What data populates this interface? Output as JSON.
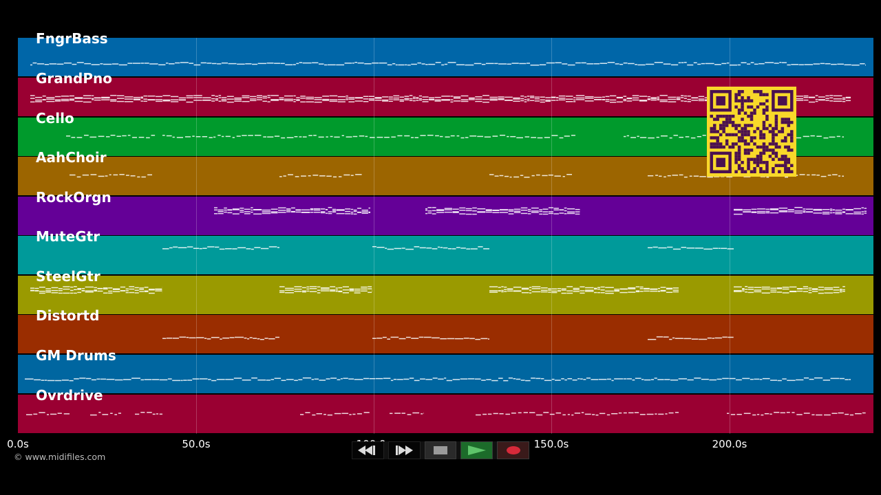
{
  "tracks": [
    {
      "name": "FngrBass",
      "color": "#0066a8"
    },
    {
      "name": "GrandPno",
      "color": "#9a0032"
    },
    {
      "name": "Cello",
      "color": "#009a2c"
    },
    {
      "name": "AahChoir",
      "color": "#9c6500"
    },
    {
      "name": "RockOrgn",
      "color": "#640097"
    },
    {
      "name": "MuteGtr",
      "color": "#009a9a"
    },
    {
      "name": "SteelGtr",
      "color": "#9a9a00"
    },
    {
      "name": "Distortd",
      "color": "#9a2d00"
    },
    {
      "name": "GM Drums",
      "color": "#0066a0"
    },
    {
      "name": "Ovrdrive",
      "color": "#9a0032"
    }
  ],
  "timeline": {
    "ticks": [
      "0.0s",
      "50.0s",
      "100.0s",
      "150.0s",
      "200.0s"
    ],
    "tick_seconds": [
      0,
      50,
      100,
      150,
      200
    ],
    "max_seconds": 240.8
  },
  "copyright": "© www.midifiles.com",
  "controls": [
    {
      "name": "rewind-icon",
      "glyph": "rewind"
    },
    {
      "name": "fast-forward-icon",
      "glyph": "forward"
    },
    {
      "name": "stop-icon",
      "glyph": "stop"
    },
    {
      "name": "play-icon",
      "glyph": "play"
    },
    {
      "name": "record-icon",
      "glyph": "record"
    }
  ],
  "qr_colors": {
    "fg": "#4a1050",
    "bg": "#f8d82a"
  }
}
